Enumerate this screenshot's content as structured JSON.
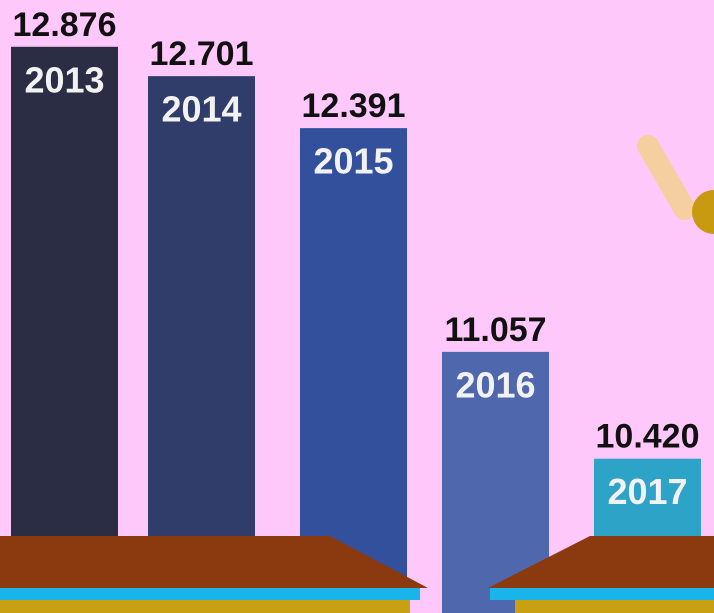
{
  "chart_data": {
    "type": "bar",
    "categories": [
      "2013",
      "2014",
      "2015",
      "2016",
      "2017"
    ],
    "values": [
      12.876,
      12.701,
      12.391,
      11.057,
      10.42
    ],
    "value_labels": [
      "12.876",
      "12.701",
      "12.391",
      "11.057",
      "10.420"
    ],
    "colors": [
      "#2a2d44",
      "#303d6b",
      "#33509c",
      "#4f67ad",
      "#2ea3c8"
    ],
    "ylim": [
      9.5,
      13
    ]
  }
}
